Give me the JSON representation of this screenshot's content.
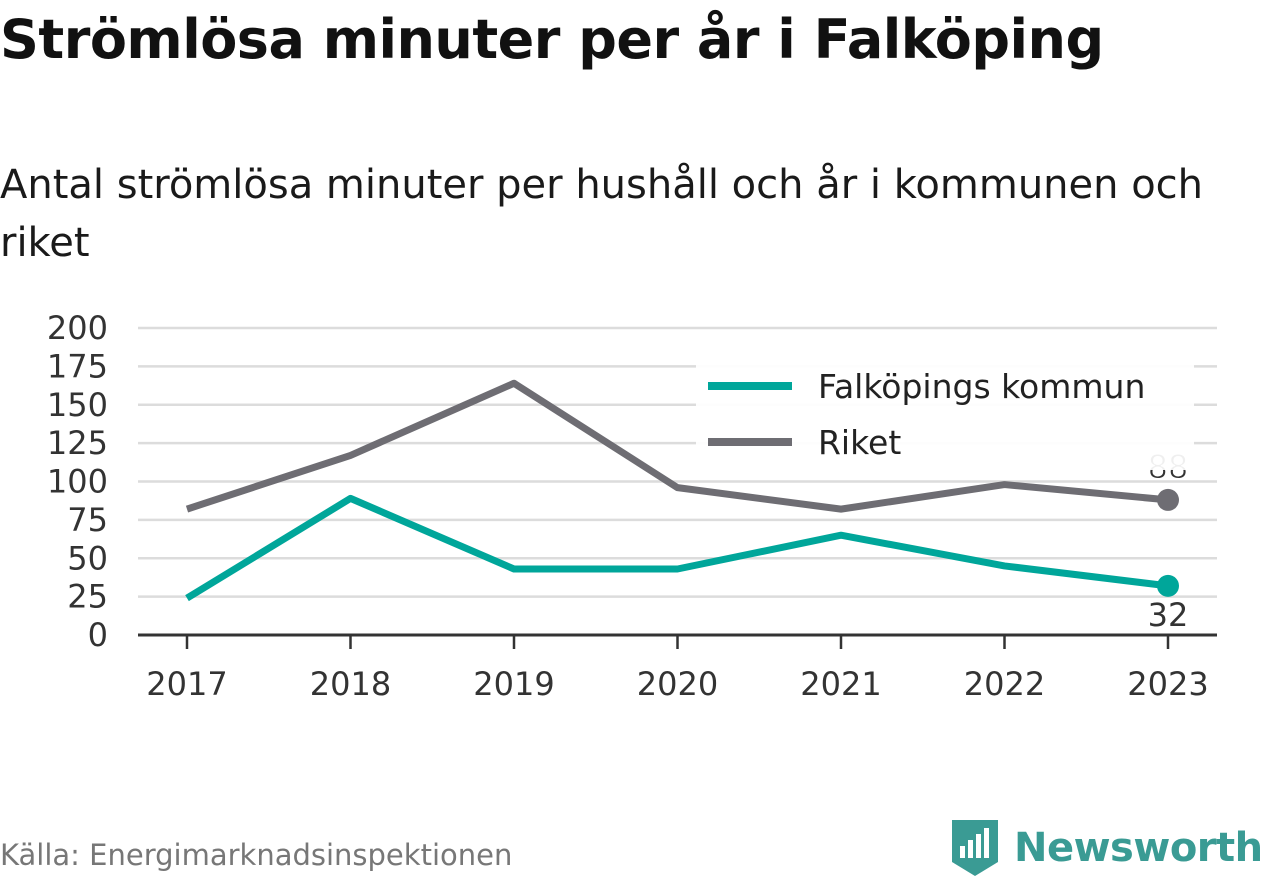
{
  "title": "Strömlösa minuter per år i Falköping",
  "subtitle": "Antal strömlösa minuter per hushåll och år i kommunen och riket",
  "source": "Källa: Energimarknadsinspektionen",
  "brand": "Newsworthy",
  "colors": {
    "kommun": "#00a69a",
    "riket": "#6e6d73",
    "grid": "#dcdcdc",
    "axis": "#333333",
    "brand": "#3a9b94"
  },
  "chart_data": {
    "type": "line",
    "title": "Strömlösa minuter per år i Falköping",
    "subtitle": "Antal strömlösa minuter per hushåll och år i kommunen och riket",
    "xlabel": "",
    "ylabel": "",
    "categories": [
      "2017",
      "2018",
      "2019",
      "2020",
      "2021",
      "2022",
      "2023"
    ],
    "ylim": [
      0,
      200
    ],
    "yticks": [
      0,
      25,
      50,
      75,
      100,
      125,
      150,
      175,
      200
    ],
    "grid": true,
    "legend_position": "top-right",
    "series": [
      {
        "name": "Falköpings kommun",
        "color": "#00a69a",
        "values": [
          24,
          89,
          43,
          43,
          65,
          45,
          32
        ],
        "end_label": "32"
      },
      {
        "name": "Riket",
        "color": "#6e6d73",
        "values": [
          82,
          117,
          164,
          96,
          82,
          98,
          88
        ],
        "end_label": "88"
      }
    ]
  }
}
